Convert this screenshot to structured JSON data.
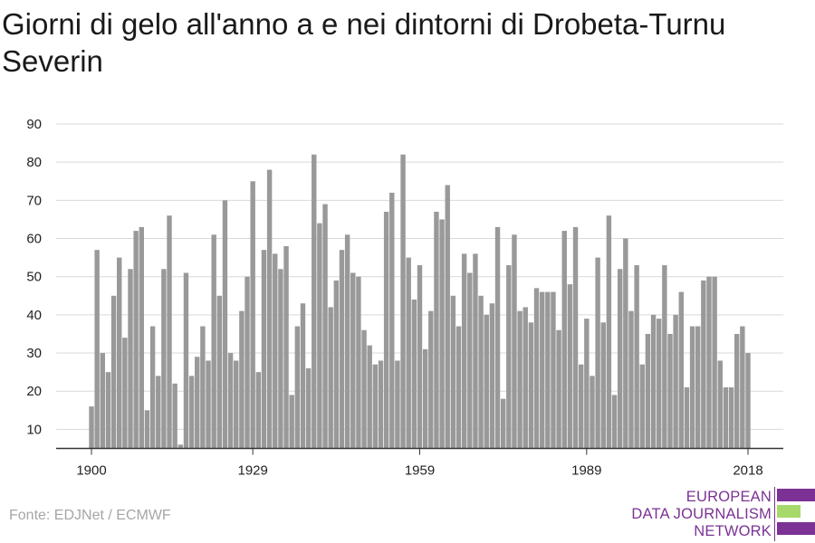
{
  "title": "Giorni di gelo all'anno a e nei dintorni di Drobeta-Turnu Severin",
  "source": "Fonte: EDJNet / ECMWF",
  "logo": {
    "line1": "EUROPEAN",
    "line2": "DATA JOURNALISM",
    "line3": "NETWORK",
    "colors": {
      "purple": "#7b3294",
      "green": "#a6d96a"
    }
  },
  "colors": {
    "bar": "#999999",
    "grid": "#d9d9d9",
    "axis": "#333333"
  },
  "chart_data": {
    "type": "bar",
    "title": "Giorni di gelo all'anno a e nei dintorni di Drobeta-Turnu Severin",
    "xlabel": "",
    "ylabel": "",
    "x_start": 1900,
    "x_end": 2018,
    "x_ticks": [
      1900,
      1929,
      1959,
      1989,
      2018
    ],
    "y_ticks": [
      10,
      20,
      30,
      40,
      50,
      60,
      70,
      80,
      90
    ],
    "ylim": [
      5,
      90
    ],
    "grid": true,
    "values": [
      16,
      57,
      30,
      25,
      45,
      55,
      34,
      52,
      62,
      63,
      15,
      37,
      24,
      52,
      66,
      22,
      6,
      51,
      24,
      29,
      37,
      28,
      61,
      45,
      70,
      30,
      28,
      41,
      50,
      75,
      25,
      57,
      78,
      56,
      52,
      58,
      19,
      37,
      43,
      26,
      82,
      64,
      69,
      42,
      49,
      57,
      61,
      51,
      50,
      36,
      32,
      27,
      28,
      67,
      72,
      28,
      82,
      55,
      44,
      53,
      31,
      41,
      67,
      65,
      74,
      45,
      37,
      56,
      51,
      56,
      45,
      40,
      43,
      63,
      18,
      53,
      61,
      41,
      42,
      38,
      47,
      46,
      46,
      46,
      36,
      62,
      48,
      63,
      27,
      39,
      24,
      55,
      38,
      66,
      19,
      52,
      60,
      41,
      53,
      27,
      35,
      40,
      39,
      53,
      35,
      40,
      46,
      21,
      37,
      37,
      49,
      50,
      50,
      28,
      21,
      21,
      35,
      37,
      30
    ]
  }
}
